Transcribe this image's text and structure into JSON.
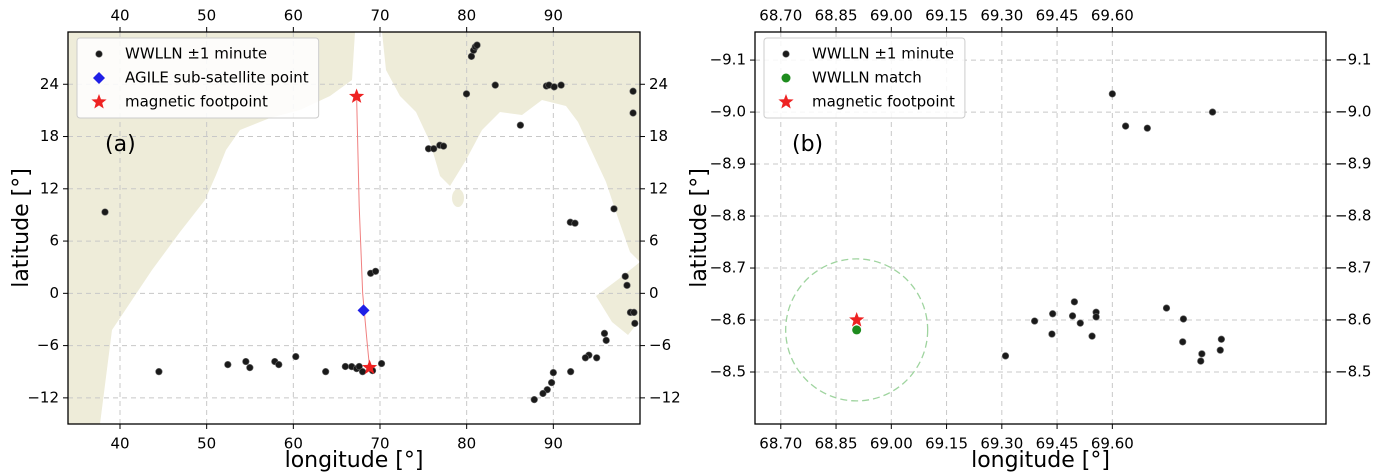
{
  "chart_data": [
    {
      "type": "scatter",
      "title": "(a)",
      "xlabel": "longitude [°]",
      "ylabel": "latitude [°]",
      "xlim": [
        34,
        100
      ],
      "ylim": [
        -15,
        30
      ],
      "xticks": [
        40,
        50,
        60,
        70,
        80,
        90
      ],
      "yticks": [
        {
          "value": -12,
          "label": "−12"
        },
        {
          "value": -6,
          "label": "−6"
        },
        0,
        6,
        12,
        18,
        24
      ],
      "grid": true,
      "legend": "upper left",
      "series": [
        {
          "name": "WWLLN ±1 minute",
          "color": "#1a1a1a",
          "marker": "circle",
          "x": [
            38.27,
            44.49,
            52.44,
            54.52,
            54.98,
            57.86,
            58.32,
            60.28,
            63.73,
            66.0,
            66.73,
            67.3,
            67.6,
            67.99,
            69.14,
            70.18,
            68.92,
            69.49,
            75.6,
            76.2,
            76.9,
            77.33,
            79.98,
            80.55,
            80.8,
            81.0,
            81.2,
            83.3,
            86.2,
            89.2,
            89.5,
            90.1,
            90.9,
            91.96,
            92.5,
            97.0,
            98.3,
            98.5,
            98.9,
            99.3,
            99.4,
            99.2,
            99.2,
            95.9,
            96.1,
            95.0,
            94.1,
            93.7,
            92.0,
            90.0,
            89.8,
            89.3,
            88.8,
            87.8
          ],
          "values": [
            9.33,
            -8.99,
            -8.18,
            -7.83,
            -8.53,
            -7.83,
            -8.18,
            -7.26,
            -8.99,
            -8.4,
            -8.41,
            -8.64,
            -8.4,
            -8.99,
            -8.87,
            -8.06,
            2.3,
            2.53,
            16.6,
            16.6,
            17.0,
            16.9,
            22.9,
            27.2,
            27.9,
            28.3,
            28.5,
            23.9,
            19.3,
            23.8,
            23.9,
            23.7,
            23.9,
            8.16,
            8.05,
            9.7,
            1.95,
            0.92,
            -2.19,
            -2.19,
            -3.45,
            23.2,
            20.7,
            -4.6,
            -5.4,
            -7.4,
            -7.1,
            -7.4,
            -8.99,
            -9.1,
            -10.25,
            -11.06,
            -11.5,
            -12.2
          ]
        },
        {
          "name": "AGILE sub-satellite point",
          "color": "#1f1fe6",
          "marker": "diamond",
          "x": [
            68.1
          ],
          "values": [
            -1.96
          ]
        },
        {
          "name": "magnetic footpoint",
          "color": "#ee2222",
          "marker": "star",
          "x": [
            67.3,
            68.8
          ],
          "values": [
            22.6,
            -8.53
          ]
        },
        {
          "type": "line",
          "color": "#f08080",
          "x": [
            67.3,
            67.6,
            68.0,
            68.5,
            68.8
          ],
          "values": [
            22.6,
            10.0,
            0.0,
            -5.5,
            -8.53
          ]
        }
      ]
    },
    {
      "type": "scatter",
      "title": "(b)",
      "xlabel": "longitude [°]",
      "ylabel": "latitude [°]",
      "xlim": [
        68.63,
        70.18
      ],
      "ylim": [
        -8.4,
        -9.154
      ],
      "xticks": [
        {
          "value": 68.7,
          "label": "68.70"
        },
        {
          "value": 68.85,
          "label": "68.85"
        },
        {
          "value": 69.0,
          "label": "69.00"
        },
        {
          "value": 69.15,
          "label": "69.15"
        },
        {
          "value": 69.3,
          "label": "69.30"
        },
        {
          "value": 69.45,
          "label": "69.45"
        },
        {
          "value": 69.6,
          "label": "69.60"
        }
      ],
      "yticks": [
        {
          "value": -9.1,
          "label": "−9.1"
        },
        {
          "value": -9.0,
          "label": "−9.0"
        },
        {
          "value": -8.9,
          "label": "−8.9"
        },
        {
          "value": -8.8,
          "label": "−8.8"
        },
        {
          "value": -8.7,
          "label": "−8.7"
        },
        {
          "value": -8.6,
          "label": "−8.6"
        },
        {
          "value": -8.5,
          "label": "−8.5"
        }
      ],
      "grid": true,
      "legend": "upper left",
      "series": [
        {
          "name": "WWLLN ±1 minute",
          "color": "#1a1a1a",
          "marker": "circle",
          "x": [
            69.6,
            69.636,
            69.695,
            69.872,
            69.31,
            69.389,
            69.438,
            69.436,
            69.492,
            69.497,
            69.513,
            69.545,
            69.556,
            69.556,
            69.747,
            69.793,
            69.791,
            69.843,
            69.84,
            69.896,
            69.893
          ],
          "values": [
            -9.035,
            -8.973,
            -8.969,
            -9.0,
            -8.531,
            -8.598,
            -8.612,
            -8.573,
            -8.608,
            -8.635,
            -8.594,
            -8.569,
            -8.615,
            -8.606,
            -8.623,
            -8.602,
            -8.558,
            -8.535,
            -8.521,
            -8.563,
            -8.542
          ]
        },
        {
          "name": "WWLLN match",
          "color": "#1e8c1e",
          "marker": "bigcircle",
          "x": [
            68.906
          ],
          "values": [
            -8.581
          ]
        },
        {
          "name": "magnetic footpoint",
          "color": "#ee2222",
          "marker": "star",
          "x": [
            68.906
          ],
          "values": [
            -8.6
          ]
        }
      ]
    }
  ]
}
